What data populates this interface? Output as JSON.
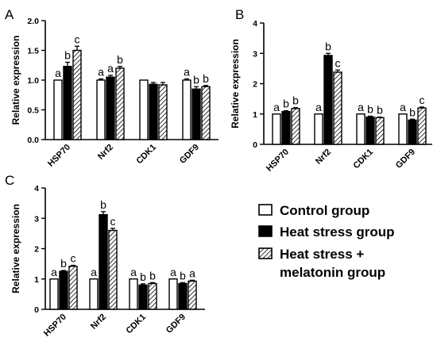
{
  "chart_data": [
    {
      "panel": "A",
      "type": "bar",
      "ylabel": "Relative expression",
      "ylim": [
        0,
        2.0
      ],
      "yticks": [
        "0.0",
        "0.5",
        "1.0",
        "1.5",
        "2.0"
      ],
      "yticks_values": [
        0,
        0.5,
        1.0,
        1.5,
        2.0
      ],
      "categories": [
        "HSP70",
        "Nrf2",
        "CDK1",
        "GDF9"
      ],
      "series": [
        {
          "name": "Control group",
          "values": [
            1.0,
            1.0,
            1.0,
            1.0
          ],
          "errors": [
            0.0,
            0.02,
            0.0,
            0.02
          ],
          "labels": [
            "a",
            "a",
            "",
            "a"
          ]
        },
        {
          "name": "Heat stress group",
          "values": [
            1.23,
            1.05,
            0.93,
            0.85
          ],
          "errors": [
            0.07,
            0.03,
            0.03,
            0.04
          ],
          "labels": [
            "b",
            "a",
            "",
            "b"
          ]
        },
        {
          "name": "Heat stress + melatonin group",
          "values": [
            1.5,
            1.2,
            0.92,
            0.89
          ],
          "errors": [
            0.07,
            0.03,
            0.04,
            0.02
          ],
          "labels": [
            "c",
            "b",
            "",
            "b"
          ]
        }
      ]
    },
    {
      "panel": "B",
      "type": "bar",
      "ylabel": "Relative expression",
      "ylim": [
        0,
        4
      ],
      "yticks": [
        "0",
        "1",
        "2",
        "3",
        "4"
      ],
      "yticks_values": [
        0,
        1,
        2,
        3,
        4
      ],
      "categories": [
        "HSP70",
        "Nrf2",
        "CDK1",
        "GDF9"
      ],
      "series": [
        {
          "name": "Control group",
          "values": [
            1.0,
            1.0,
            1.0,
            1.0
          ],
          "errors": [
            0.0,
            0.0,
            0.0,
            0.0
          ],
          "labels": [
            "a",
            "a",
            "a",
            "a"
          ]
        },
        {
          "name": "Heat stress group",
          "values": [
            1.08,
            2.93,
            0.9,
            0.8
          ],
          "errors": [
            0.03,
            0.07,
            0.03,
            0.03
          ],
          "labels": [
            "b",
            "b",
            "b",
            "b"
          ]
        },
        {
          "name": "Heat stress + melatonin group",
          "values": [
            1.18,
            2.38,
            0.88,
            1.2
          ],
          "errors": [
            0.03,
            0.07,
            0.02,
            0.03
          ],
          "labels": [
            "b",
            "c",
            "b",
            "c"
          ]
        }
      ]
    },
    {
      "panel": "C",
      "type": "bar",
      "ylabel": "Relative expression",
      "ylim": [
        0,
        4
      ],
      "yticks": [
        "0",
        "1",
        "2",
        "3",
        "4"
      ],
      "yticks_values": [
        0,
        1,
        2,
        3,
        4
      ],
      "categories": [
        "HSP70",
        "Nrf2",
        "CDK1",
        "GDF9"
      ],
      "series": [
        {
          "name": "Control group",
          "values": [
            1.0,
            1.0,
            1.0,
            1.0
          ],
          "errors": [
            0.0,
            0.0,
            0.0,
            0.0
          ],
          "labels": [
            "a",
            "a",
            "a",
            "a"
          ]
        },
        {
          "name": "Heat stress group",
          "values": [
            1.25,
            3.12,
            0.8,
            0.85
          ],
          "errors": [
            0.03,
            0.1,
            0.04,
            0.03
          ],
          "labels": [
            "b",
            "b",
            "b",
            "b"
          ]
        },
        {
          "name": "Heat stress + melatonin group",
          "values": [
            1.42,
            2.6,
            0.85,
            0.93
          ],
          "errors": [
            0.03,
            0.07,
            0.03,
            0.03
          ],
          "labels": [
            "c",
            "c",
            "b",
            "a"
          ]
        }
      ]
    }
  ],
  "legend": {
    "items": [
      {
        "label_lines": [
          "Control group"
        ],
        "style": "white"
      },
      {
        "label_lines": [
          "Heat stress group"
        ],
        "style": "black"
      },
      {
        "label_lines": [
          "Heat stress +",
          "melatonin group"
        ],
        "style": "hatch"
      }
    ]
  }
}
